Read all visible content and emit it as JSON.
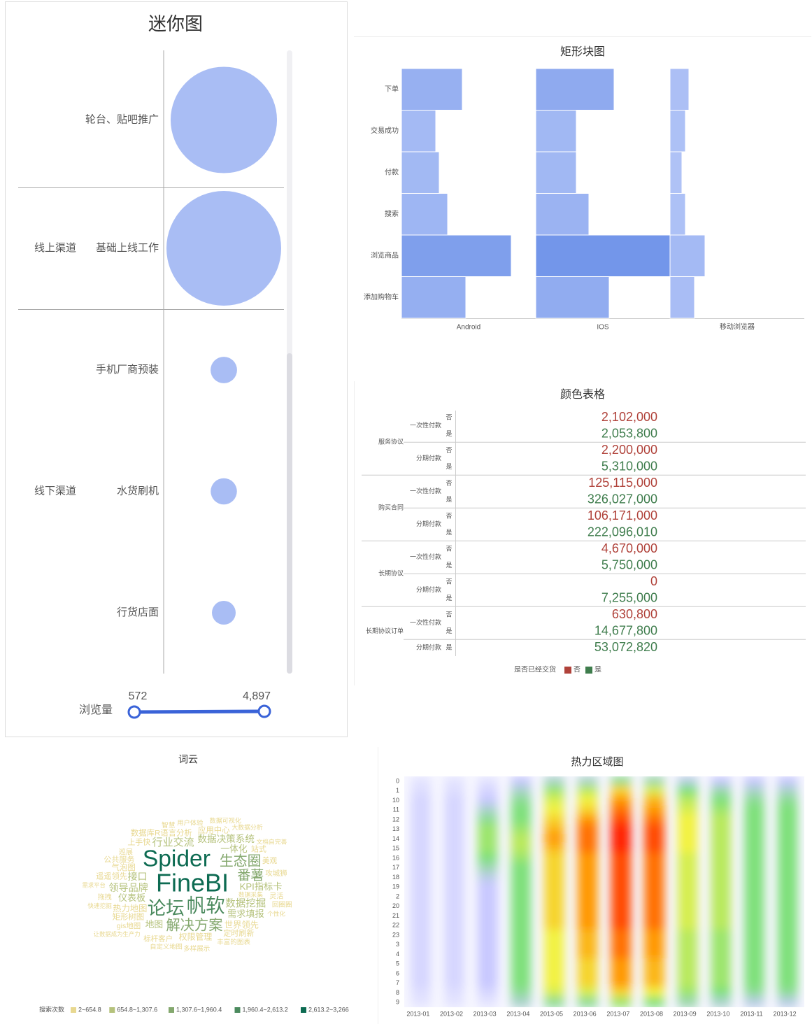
{
  "chart_data": [
    {
      "type": "bubble",
      "title": "迷你图",
      "categories": [
        "轮台、贴吧推广",
        "基础上线工作",
        "手机厂商预装",
        "水货刷机",
        "行货店面"
      ],
      "groups": [
        null,
        "线上渠道",
        "线下渠道",
        "线下渠道",
        "线下渠道"
      ],
      "values": [
        4500,
        4897,
        700,
        690,
        572
      ],
      "color": "#a9bdf4",
      "size_legend": {
        "title": "浏览量",
        "range": [
          {
            "value": 572,
            "label": "572"
          },
          {
            "value": 4897,
            "label": "4,897"
          }
        ],
        "color": "#3a63d8"
      }
    },
    {
      "type": "mosaic",
      "title": "矩形块图",
      "categories": [
        "下单",
        "交易成功",
        "付款",
        "搜索",
        "浏览商品",
        "添加购物车"
      ],
      "colors": [
        "#b5c6f7",
        "#7396ea"
      ],
      "series": [
        {
          "name": "Android",
          "values": [
            87,
            49,
            54,
            66,
            157,
            92
          ]
        },
        {
          "name": "IOS",
          "values": [
            112,
            58,
            58,
            76,
            192,
            105
          ]
        },
        {
          "name": "移动浏览器",
          "values": [
            27,
            22,
            17,
            22,
            50,
            35
          ]
        }
      ]
    },
    {
      "type": "table",
      "title": "颜色表格",
      "groups": [
        {
          "name": "服务协议",
          "children": [
            {
              "name": "一次性付款",
              "cells": [
                {
                  "key": "否",
                  "value": "2,102,000"
                },
                {
                  "key": "是",
                  "value": "2,053,800"
                }
              ]
            },
            {
              "name": "分期付款",
              "cells": [
                {
                  "key": "否",
                  "value": "2,200,000"
                },
                {
                  "key": "是",
                  "value": "5,310,000"
                }
              ]
            }
          ]
        },
        {
          "name": "购买合同",
          "children": [
            {
              "name": "一次性付款",
              "cells": [
                {
                  "key": "否",
                  "value": "125,115,000"
                },
                {
                  "key": "是",
                  "value": "326,027,000"
                }
              ]
            },
            {
              "name": "分期付款",
              "cells": [
                {
                  "key": "否",
                  "value": "106,171,000"
                },
                {
                  "key": "是",
                  "value": "222,096,010"
                }
              ]
            }
          ]
        },
        {
          "name": "长期协议",
          "children": [
            {
              "name": "一次性付款",
              "cells": [
                {
                  "key": "否",
                  "value": "4,670,000"
                },
                {
                  "key": "是",
                  "value": "5,750,000"
                }
              ]
            },
            {
              "name": "分期付款",
              "cells": [
                {
                  "key": "否",
                  "value": "0"
                },
                {
                  "key": "是",
                  "value": "7,255,000"
                }
              ]
            }
          ]
        },
        {
          "name": "长期协议订单",
          "children": [
            {
              "name": "一次性付款",
              "cells": [
                {
                  "key": "否",
                  "value": "630,800"
                },
                {
                  "key": "是",
                  "value": "14,677,800"
                }
              ]
            },
            {
              "name": "分期付款",
              "cells": [
                {
                  "key": "是",
                  "value": "53,072,820"
                }
              ]
            }
          ]
        }
      ],
      "legend": {
        "title": "是否已经交货",
        "items": [
          {
            "name": "否",
            "color": "#b0423a"
          },
          {
            "name": "是",
            "color": "#3f7d4d"
          }
        ]
      }
    },
    {
      "type": "wordcloud",
      "title": "词云",
      "words": [
        {
          "text": "FineBI",
          "value": 3266
        },
        {
          "text": "Spider",
          "value": 3000
        },
        {
          "text": "帆软",
          "value": 2300
        },
        {
          "text": "论坛",
          "value": 2200
        },
        {
          "text": "解决方案",
          "value": 1500
        },
        {
          "text": "生态圈",
          "value": 1450
        },
        {
          "text": "番薯",
          "value": 1350
        },
        {
          "text": "行业交流",
          "value": 900
        },
        {
          "text": "数据挖掘",
          "value": 850
        },
        {
          "text": "领导品牌",
          "value": 800
        },
        {
          "text": "接口",
          "value": 800
        },
        {
          "text": "数据决策系统",
          "value": 750
        },
        {
          "text": "KPI指标卡",
          "value": 700
        },
        {
          "text": "需求填报",
          "value": 700
        },
        {
          "text": "仪表板",
          "value": 680
        },
        {
          "text": "一体化",
          "value": 660
        },
        {
          "text": "地图",
          "value": 660
        },
        {
          "text": "热力地图",
          "value": 600
        },
        {
          "text": "世界领先",
          "value": 600
        },
        {
          "text": "权限管理",
          "value": 550
        },
        {
          "text": "数据库R语言分析",
          "value": 500
        },
        {
          "text": "气泡图",
          "value": 500
        },
        {
          "text": "矩形树图",
          "value": 500
        },
        {
          "text": "应用中心",
          "value": 500
        },
        {
          "text": "遥遥领先",
          "value": 480
        },
        {
          "text": "定时刷新",
          "value": 460
        },
        {
          "text": "公共服务",
          "value": 450
        },
        {
          "text": "上手快",
          "value": 450
        },
        {
          "text": "站式",
          "value": 450
        },
        {
          "text": "美观",
          "value": 420
        },
        {
          "text": "标杆客户",
          "value": 400
        },
        {
          "text": "gis地图",
          "value": 400
        },
        {
          "text": "攻城狮",
          "value": 380
        },
        {
          "text": "巡展",
          "value": 350
        },
        {
          "text": "灵活",
          "value": 350
        },
        {
          "text": "拖拽",
          "value": 350
        },
        {
          "text": "智慧",
          "value": 320
        },
        {
          "text": "回圈圈",
          "value": 300
        },
        {
          "text": "丰富的图表",
          "value": 300
        },
        {
          "text": "多样展示",
          "value": 280
        },
        {
          "text": "用户体验",
          "value": 260
        },
        {
          "text": "自定义地图",
          "value": 260
        },
        {
          "text": "数据可视化",
          "value": 240
        },
        {
          "text": "大数据分析",
          "value": 220
        },
        {
          "text": "文档自完善",
          "value": 200
        },
        {
          "text": "数据采集",
          "value": 200
        },
        {
          "text": "个性化",
          "value": 180
        },
        {
          "text": "快速挖掘",
          "value": 180
        },
        {
          "text": "让数据成为生产力",
          "value": 160
        },
        {
          "text": "需求平台",
          "value": 150
        }
      ],
      "legend": {
        "title": "搜索次数",
        "bins": [
          {
            "range": [
              2,
              654.8
            ],
            "label": "2~654.8",
            "color": "#e8d890"
          },
          {
            "range": [
              654.8,
              1307.6
            ],
            "label": "654.8~1,307.6",
            "color": "#b5c27c"
          },
          {
            "range": [
              1307.6,
              1960.4
            ],
            "label": "1,307.6~1,960.4",
            "color": "#84a86e"
          },
          {
            "range": [
              1960.4,
              2613.2
            ],
            "label": "1,960.4~2,613.2",
            "color": "#4b8a5e"
          },
          {
            "range": [
              2613.2,
              3266
            ],
            "label": "2,613.2~3,266",
            "color": "#0d6b52"
          }
        ]
      }
    },
    {
      "type": "heatmap",
      "title": "热力区域图",
      "x": [
        "2013-01",
        "2013-02",
        "2013-03",
        "2013-04",
        "2013-05",
        "2013-06",
        "2013-07",
        "2013-08",
        "2013-09",
        "2013-10",
        "2013-11",
        "2013-12"
      ],
      "categories": [
        "0",
        "1",
        "10",
        "11",
        "12",
        "13",
        "14",
        "15",
        "16",
        "17",
        "18",
        "19",
        "2",
        "20",
        "21",
        "22",
        "23",
        "3",
        "4",
        "5",
        "6",
        "7",
        "8",
        "9"
      ],
      "values": [
        [
          10,
          12,
          15,
          15,
          15,
          15,
          15,
          15,
          15,
          15,
          15,
          15,
          15,
          15,
          15,
          15,
          15,
          15,
          15,
          15,
          15,
          15,
          12,
          10
        ],
        [
          10,
          12,
          15,
          15,
          15,
          15,
          15,
          15,
          15,
          15,
          15,
          15,
          15,
          15,
          15,
          15,
          15,
          15,
          15,
          15,
          15,
          15,
          12,
          10
        ],
        [
          10,
          15,
          20,
          30,
          40,
          50,
          50,
          50,
          45,
          35,
          25,
          20,
          20,
          20,
          20,
          20,
          20,
          20,
          20,
          20,
          20,
          20,
          15,
          10
        ],
        [
          20,
          30,
          40,
          45,
          45,
          50,
          55,
          55,
          50,
          45,
          45,
          45,
          45,
          45,
          45,
          45,
          45,
          45,
          45,
          45,
          45,
          45,
          40,
          30
        ],
        [
          30,
          50,
          60,
          65,
          70,
          75,
          80,
          75,
          70,
          70,
          70,
          70,
          70,
          70,
          70,
          70,
          65,
          65,
          65,
          65,
          65,
          65,
          60,
          40
        ],
        [
          30,
          55,
          65,
          70,
          80,
          85,
          85,
          85,
          80,
          80,
          80,
          80,
          80,
          80,
          80,
          80,
          75,
          75,
          75,
          70,
          70,
          70,
          60,
          40
        ],
        [
          40,
          70,
          80,
          85,
          90,
          95,
          95,
          95,
          90,
          90,
          90,
          90,
          90,
          90,
          90,
          90,
          85,
          85,
          85,
          80,
          80,
          80,
          70,
          50
        ],
        [
          35,
          60,
          75,
          80,
          85,
          90,
          90,
          90,
          85,
          85,
          85,
          85,
          85,
          85,
          85,
          85,
          80,
          80,
          80,
          75,
          75,
          75,
          65,
          45
        ],
        [
          25,
          45,
          55,
          60,
          65,
          65,
          65,
          65,
          60,
          60,
          60,
          60,
          60,
          60,
          60,
          60,
          55,
          55,
          55,
          55,
          55,
          55,
          50,
          35
        ],
        [
          20,
          35,
          45,
          50,
          55,
          55,
          55,
          55,
          55,
          55,
          55,
          55,
          55,
          55,
          55,
          55,
          50,
          50,
          50,
          50,
          50,
          50,
          45,
          30
        ],
        [
          20,
          30,
          40,
          45,
          45,
          45,
          45,
          45,
          45,
          45,
          45,
          45,
          45,
          45,
          45,
          45,
          45,
          45,
          45,
          45,
          45,
          45,
          40,
          25
        ],
        [
          20,
          30,
          40,
          45,
          45,
          45,
          45,
          45,
          45,
          45,
          45,
          45,
          45,
          45,
          45,
          45,
          45,
          45,
          45,
          45,
          45,
          45,
          40,
          25
        ]
      ]
    }
  ]
}
